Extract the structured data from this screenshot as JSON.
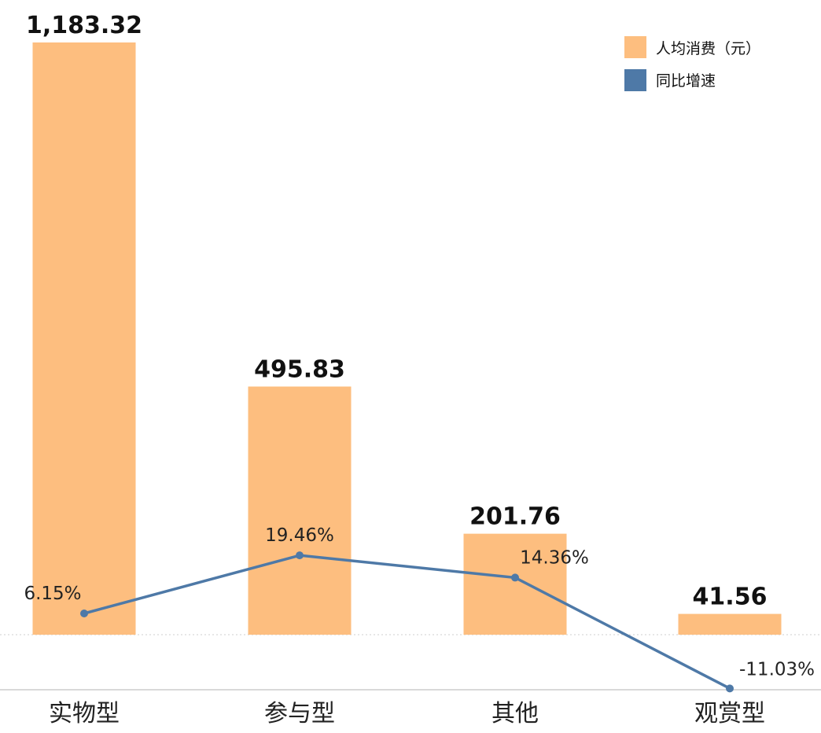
{
  "colors": {
    "bar": "#FDBE7F",
    "line": "#4E79A7",
    "axis": "#d9d9d9",
    "zero_line": "#cfcfcf"
  },
  "chart_data": {
    "type": "bar+line",
    "categories": [
      "实物型",
      "参与型",
      "其他",
      "观赏型"
    ],
    "series": [
      {
        "name": "人均消费（元）",
        "type": "bar",
        "values": [
          1183.32,
          495.83,
          201.76,
          41.56
        ],
        "labels": [
          "1,183.32",
          "495.83",
          "201.76",
          "41.56"
        ]
      },
      {
        "name": "同比增速",
        "type": "line",
        "values": [
          6.15,
          19.46,
          14.36,
          -11.03
        ],
        "labels": [
          "6.15%",
          "19.46%",
          "14.36%",
          "-11.03%"
        ]
      }
    ],
    "legend_position": "top-right",
    "grid": false
  }
}
